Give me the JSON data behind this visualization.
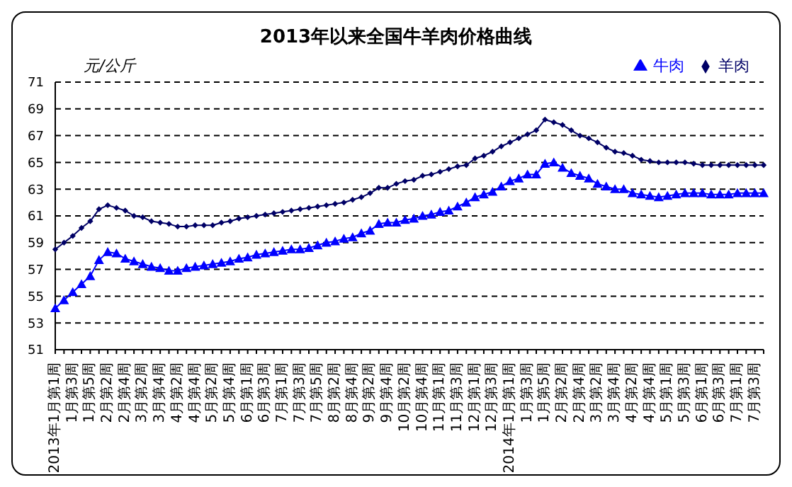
{
  "chart_data": {
    "type": "line",
    "title": "2013年以来全国牛羊肉价格曲线",
    "ylabel": "元/公斤",
    "categories": [
      "2013年1月第1周",
      null,
      "1月第3周",
      null,
      "1月第5周",
      null,
      "2月第2周",
      null,
      "2月第4周",
      null,
      "3月第2周",
      null,
      "3月第4周",
      null,
      "4月第2周",
      null,
      "4月第4周",
      null,
      "5月第2周",
      null,
      "5月第4周",
      null,
      "6月第1周",
      null,
      "6月第3周",
      null,
      "7月第1周",
      null,
      "7月第3周",
      null,
      "7月第5周",
      null,
      "8月第2周",
      null,
      "8月第4周",
      null,
      "9月第2周",
      null,
      "9月第4周",
      null,
      "10月第2周",
      null,
      "10月第4周",
      null,
      "11月第1周",
      null,
      "11月第3周",
      null,
      "12月第1周",
      null,
      "12月第3周",
      null,
      "2014年1月第1周",
      null,
      "1月第3周",
      null,
      "1月第5周",
      null,
      "2月第2周",
      null,
      "2月第4周",
      null,
      "3月第2周",
      null,
      "3月第4周",
      null,
      "4月第2周",
      null,
      "4月第4周",
      null,
      "5月第1周",
      null,
      "5月第3周",
      null,
      "6月第1周",
      null,
      "6月第3周",
      null,
      "7月第1周",
      null,
      "7月第3周",
      null
    ],
    "series": [
      {
        "name": "牛肉",
        "color": "#0000ff",
        "marker": "triangle",
        "values": [
          54.1,
          54.7,
          55.3,
          55.9,
          56.5,
          57.7,
          58.3,
          58.2,
          57.8,
          57.6,
          57.4,
          57.2,
          57.1,
          56.9,
          56.9,
          57.1,
          57.2,
          57.3,
          57.4,
          57.5,
          57.6,
          57.8,
          57.9,
          58.1,
          58.2,
          58.3,
          58.4,
          58.5,
          58.5,
          58.6,
          58.8,
          59.0,
          59.1,
          59.3,
          59.4,
          59.7,
          59.9,
          60.4,
          60.5,
          60.5,
          60.7,
          60.8,
          61.0,
          61.1,
          61.3,
          61.4,
          61.7,
          62.0,
          62.4,
          62.6,
          62.8,
          63.2,
          63.6,
          63.8,
          64.1,
          64.1,
          64.9,
          65.0,
          64.6,
          64.2,
          64.0,
          63.8,
          63.4,
          63.2,
          63.0,
          63.0,
          62.7,
          62.6,
          62.5,
          62.4,
          62.5,
          62.6,
          62.7,
          62.7,
          62.7,
          62.6,
          62.6,
          62.6,
          62.7,
          62.7,
          62.7,
          62.7
        ]
      },
      {
        "name": "羊肉",
        "color": "#000066",
        "marker": "diamond",
        "values": [
          58.5,
          59.0,
          59.5,
          60.1,
          60.6,
          61.5,
          61.8,
          61.6,
          61.4,
          61.0,
          60.9,
          60.6,
          60.5,
          60.4,
          60.2,
          60.2,
          60.3,
          60.3,
          60.3,
          60.5,
          60.6,
          60.8,
          60.9,
          61.0,
          61.1,
          61.2,
          61.3,
          61.4,
          61.5,
          61.6,
          61.7,
          61.8,
          61.9,
          62.0,
          62.2,
          62.4,
          62.7,
          63.1,
          63.1,
          63.4,
          63.6,
          63.7,
          64.0,
          64.1,
          64.3,
          64.5,
          64.7,
          64.8,
          65.3,
          65.5,
          65.8,
          66.2,
          66.5,
          66.8,
          67.1,
          67.4,
          68.2,
          68.0,
          67.8,
          67.4,
          67.0,
          66.8,
          66.5,
          66.1,
          65.8,
          65.7,
          65.5,
          65.2,
          65.1,
          65.0,
          65.0,
          65.0,
          65.0,
          64.9,
          64.8,
          64.8,
          64.8,
          64.8,
          64.8,
          64.8,
          64.8,
          64.8
        ]
      }
    ],
    "ylim": [
      51,
      71
    ],
    "yticks": [
      51,
      53,
      55,
      57,
      59,
      61,
      63,
      65,
      67,
      69,
      71
    ],
    "grid": "y",
    "legend": "top right"
  }
}
